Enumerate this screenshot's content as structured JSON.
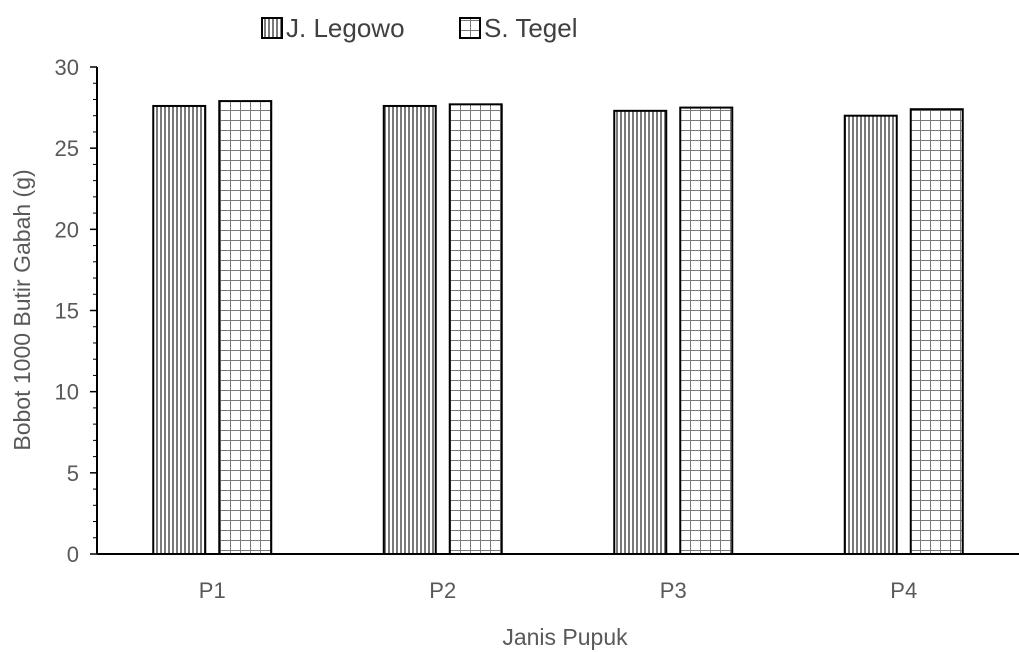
{
  "chart_data": {
    "type": "bar",
    "categories": [
      "P1",
      "P2",
      "P3",
      "P4"
    ],
    "series": [
      {
        "name": "J. Legowo",
        "values": [
          27.6,
          27.6,
          27.3,
          27.0
        ],
        "pattern": "vertical-stripes"
      },
      {
        "name": "S. Tegel",
        "values": [
          27.9,
          27.7,
          27.5,
          27.4
        ],
        "pattern": "grid"
      }
    ],
    "title": "",
    "xlabel": "Janis Pupuk",
    "ylabel": "Bobot 1000 Butir Gabah (g)",
    "ylim": [
      0,
      30
    ],
    "yticks": [
      0,
      5,
      10,
      15,
      20,
      25,
      30
    ],
    "grid": false,
    "legend_position": "top"
  }
}
